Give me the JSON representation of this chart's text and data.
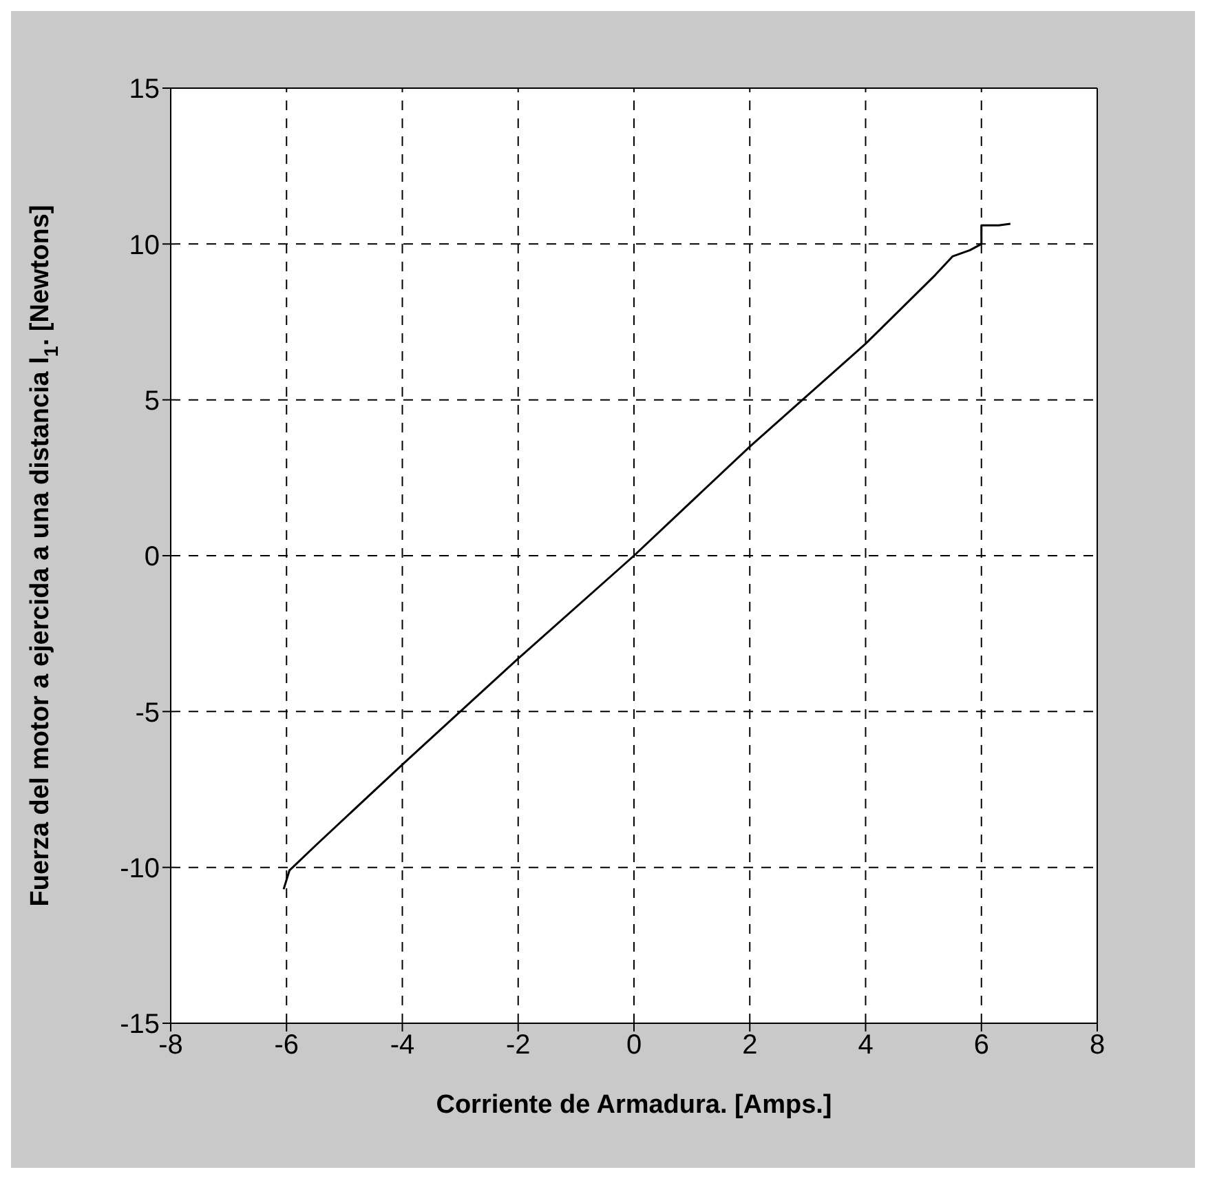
{
  "chart_data": {
    "type": "line",
    "xlabel": "Corriente de Armadura. [Amps.]",
    "ylabel": "Fuerza del motor a ejercida a una distancia l$_{1}$. [Newtons]",
    "series": [
      {
        "color": "#000000",
        "x": [
          -6.05,
          -5.95,
          -5.5,
          -4,
          -2,
          0,
          2,
          4,
          5.2,
          5.5,
          5.8,
          6.0,
          6.0,
          6.3,
          6.5
        ],
        "values": [
          -10.7,
          -10.1,
          -9.3,
          -6.7,
          -3.3,
          0,
          3.5,
          6.8,
          9.0,
          9.6,
          9.8,
          10.0,
          10.6,
          10.6,
          10.65
        ]
      }
    ],
    "xlim": [
      -8,
      8
    ],
    "xticks": [
      -8,
      -6,
      -4,
      -2,
      0,
      2,
      4,
      6,
      8
    ],
    "ylim": [
      -15,
      15
    ],
    "yticks": [
      -15,
      -10,
      -5,
      0,
      5,
      10,
      15
    ],
    "grid": true,
    "marker": "none",
    "line_style": "solid"
  }
}
